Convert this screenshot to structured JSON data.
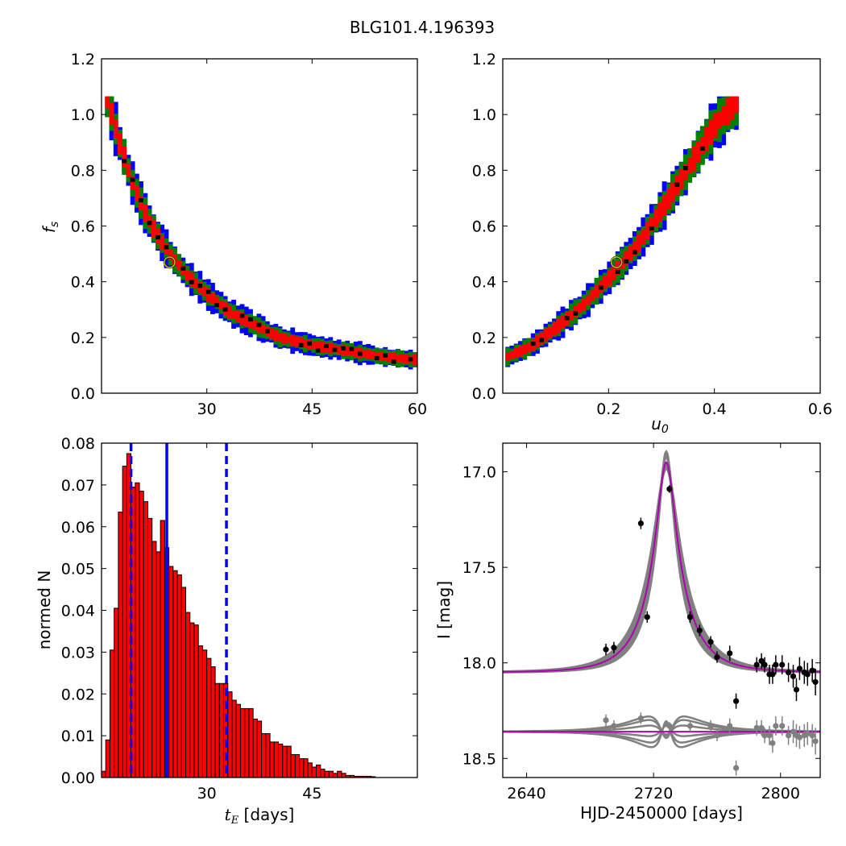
{
  "title": "BLG101.4.196393",
  "colors": {
    "outer": "#0000ff",
    "middle": "#008000",
    "inner": "#ff0000",
    "best": "#000000",
    "best_marker": "#d4c21a",
    "hist_fill": "#ff0000",
    "hist_line": "#0000ff",
    "model": "#b000b0",
    "band": "#808080"
  },
  "chart_data": [
    {
      "id": "fs_vs_tE",
      "type": "heatmap",
      "xlabel": "",
      "ylabel": "f_s",
      "xlim": [
        15,
        60
      ],
      "ylim": [
        0,
        1.2
      ],
      "xticks": [
        30,
        45,
        60
      ],
      "yticks": [
        0.0,
        0.2,
        0.4,
        0.6,
        0.8,
        1.0,
        1.2
      ],
      "ridge": [
        [
          15.5,
          1.06
        ],
        [
          17,
          0.92
        ],
        [
          19,
          0.76
        ],
        [
          21,
          0.64
        ],
        [
          23,
          0.55
        ],
        [
          25,
          0.48
        ],
        [
          27,
          0.42
        ],
        [
          30,
          0.35
        ],
        [
          33,
          0.29
        ],
        [
          36,
          0.25
        ],
        [
          40,
          0.2
        ],
        [
          45,
          0.17
        ],
        [
          50,
          0.15
        ],
        [
          55,
          0.13
        ],
        [
          59,
          0.12
        ]
      ],
      "best_fit": {
        "x": 24.7,
        "y": 0.47
      }
    },
    {
      "id": "fs_vs_u0",
      "type": "heatmap",
      "xlabel": "u_0",
      "ylabel": "",
      "xlim": [
        0,
        0.6
      ],
      "ylim": [
        0,
        1.2
      ],
      "xticks": [
        0.2,
        0.4,
        0.6
      ],
      "yticks": [
        0.0,
        0.2,
        0.4,
        0.6,
        0.8,
        1.0,
        1.2
      ],
      "ridge": [
        [
          0.005,
          0.13
        ],
        [
          0.05,
          0.17
        ],
        [
          0.1,
          0.24
        ],
        [
          0.15,
          0.32
        ],
        [
          0.2,
          0.42
        ],
        [
          0.25,
          0.53
        ],
        [
          0.3,
          0.67
        ],
        [
          0.35,
          0.82
        ],
        [
          0.4,
          0.97
        ],
        [
          0.44,
          1.05
        ]
      ],
      "best_fit": {
        "x": 0.215,
        "y": 0.47
      }
    },
    {
      "id": "tE_histogram",
      "type": "bar",
      "xlabel": "t_E  [days]",
      "ylabel": "normed N",
      "xlim": [
        15,
        60
      ],
      "ylim": [
        0,
        0.08
      ],
      "xticks": [
        30,
        45
      ],
      "yticks": [
        0.0,
        0.01,
        0.02,
        0.03,
        0.04,
        0.05,
        0.06,
        0.07,
        0.08
      ],
      "bin_start": 15,
      "bin_width": 0.6,
      "values": [
        0.0015,
        0.009,
        0.0305,
        0.0405,
        0.0635,
        0.0745,
        0.0775,
        0.0695,
        0.0705,
        0.0685,
        0.066,
        0.062,
        0.0565,
        0.054,
        0.0615,
        0.055,
        0.0505,
        0.0495,
        0.0485,
        0.0455,
        0.0395,
        0.037,
        0.0365,
        0.0315,
        0.0305,
        0.0285,
        0.0265,
        0.0225,
        0.0225,
        0.0225,
        0.0205,
        0.0185,
        0.0175,
        0.0165,
        0.0165,
        0.0165,
        0.014,
        0.0135,
        0.0105,
        0.0105,
        0.0085,
        0.0085,
        0.008,
        0.0075,
        0.0075,
        0.0055,
        0.0055,
        0.0045,
        0.0045,
        0.0035,
        0.0025,
        0.003,
        0.002,
        0.0015,
        0.0015,
        0.001,
        0.0015,
        0.001,
        0.0005,
        0.0005,
        0.0003,
        0.0003,
        0.0003,
        0.0003,
        0.0002
      ],
      "median": 24.3,
      "lower": 19.2,
      "upper": 32.8
    },
    {
      "id": "light_curve",
      "type": "scatter",
      "xlabel": "HJD-2450000 [days]",
      "ylabel": "I [mag]",
      "xlim": [
        2625,
        2825
      ],
      "ylim": [
        18.6,
        16.85
      ],
      "xticks": [
        2640,
        2720,
        2800
      ],
      "yticks": [
        17.0,
        17.5,
        18.0,
        18.5
      ],
      "model": {
        "t0": 2728,
        "tE": 24.7,
        "u0": 0.215,
        "fs": 0.47,
        "Ibase": 18.05,
        "offset": 18.36
      },
      "points": [
        [
          2690,
          17.93,
          0.03
        ],
        [
          2695,
          17.92,
          0.03
        ],
        [
          2712,
          17.27,
          0.03
        ],
        [
          2716,
          17.76,
          0.03
        ],
        [
          2730,
          17.09,
          0.02
        ],
        [
          2743,
          17.76,
          0.03
        ],
        [
          2749,
          17.83,
          0.03
        ],
        [
          2756,
          17.89,
          0.03
        ],
        [
          2760,
          17.97,
          0.03
        ],
        [
          2768,
          17.95,
          0.04
        ],
        [
          2772,
          18.2,
          0.04
        ],
        [
          2785,
          18.01,
          0.04
        ],
        [
          2788,
          17.99,
          0.04
        ],
        [
          2790,
          18.01,
          0.04
        ],
        [
          2793,
          18.06,
          0.05
        ],
        [
          2795,
          18.06,
          0.05
        ],
        [
          2797,
          18.01,
          0.05
        ],
        [
          2801,
          18.01,
          0.05
        ],
        [
          2805,
          18.05,
          0.05
        ],
        [
          2808,
          18.07,
          0.06
        ],
        [
          2810,
          18.14,
          0.06
        ],
        [
          2812,
          18.03,
          0.06
        ],
        [
          2815,
          18.05,
          0.06
        ],
        [
          2817,
          18.06,
          0.06
        ],
        [
          2820,
          18.04,
          0.06
        ],
        [
          2822,
          18.1,
          0.07
        ]
      ],
      "residuals": [
        [
          2690,
          18.3,
          0.03
        ],
        [
          2695,
          18.33,
          0.03
        ],
        [
          2712,
          18.29,
          0.03
        ],
        [
          2730,
          18.33,
          0.02
        ],
        [
          2743,
          18.33,
          0.03
        ],
        [
          2756,
          18.33,
          0.03
        ],
        [
          2760,
          18.38,
          0.03
        ],
        [
          2768,
          18.33,
          0.04
        ],
        [
          2772,
          18.55,
          0.04
        ],
        [
          2785,
          18.34,
          0.04
        ],
        [
          2788,
          18.34,
          0.04
        ],
        [
          2790,
          18.38,
          0.04
        ],
        [
          2793,
          18.38,
          0.05
        ],
        [
          2795,
          18.42,
          0.05
        ],
        [
          2797,
          18.33,
          0.05
        ],
        [
          2801,
          18.33,
          0.05
        ],
        [
          2805,
          18.38,
          0.05
        ],
        [
          2808,
          18.36,
          0.06
        ],
        [
          2810,
          18.38,
          0.06
        ],
        [
          2812,
          18.39,
          0.06
        ],
        [
          2815,
          18.38,
          0.06
        ],
        [
          2817,
          18.37,
          0.06
        ],
        [
          2820,
          18.38,
          0.06
        ],
        [
          2822,
          18.41,
          0.07
        ]
      ]
    }
  ]
}
